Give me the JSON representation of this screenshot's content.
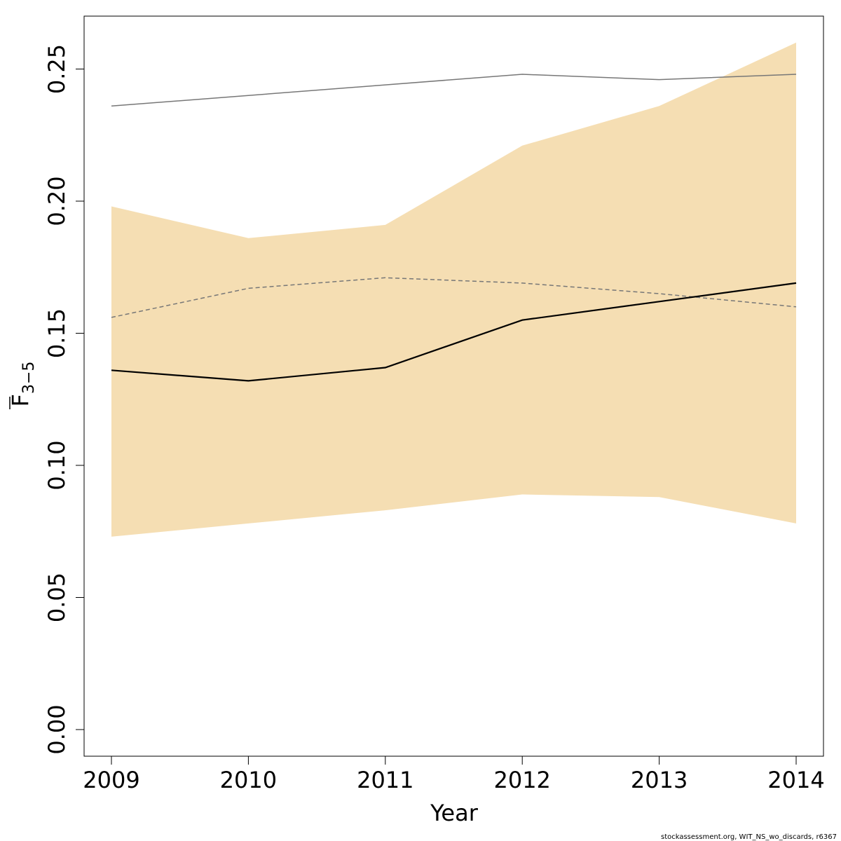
{
  "chart_data": {
    "type": "line",
    "x": [
      2009,
      2010,
      2011,
      2012,
      2013,
      2014
    ],
    "series": [
      {
        "role": "confidence-band-upper",
        "values": [
          0.198,
          0.186,
          0.191,
          0.221,
          0.236,
          0.26
        ]
      },
      {
        "role": "confidence-band-lower",
        "values": [
          0.073,
          0.078,
          0.083,
          0.089,
          0.088,
          0.078
        ]
      },
      {
        "role": "estimate",
        "values": [
          0.136,
          0.132,
          0.137,
          0.155,
          0.162,
          0.169
        ]
      },
      {
        "role": "reference-dashed",
        "values": [
          0.156,
          0.167,
          0.171,
          0.169,
          0.165,
          0.16
        ]
      },
      {
        "role": "reference-solid-grey",
        "values": [
          0.236,
          0.24,
          0.244,
          0.248,
          0.246,
          0.248
        ]
      }
    ],
    "xlabel": "Year",
    "ylabel_main": "F",
    "ylabel_sub": "3−5",
    "ylim": [
      0.0,
      0.26
    ],
    "xlim": [
      2009,
      2014
    ],
    "x_ticks": [
      "2009",
      "2010",
      "2011",
      "2012",
      "2013",
      "2014"
    ],
    "y_ticks": [
      "0.00",
      "0.05",
      "0.10",
      "0.15",
      "0.20",
      "0.25"
    ],
    "y_tick_values": [
      0.0,
      0.05,
      0.1,
      0.15,
      0.2,
      0.25
    ],
    "grid": false,
    "legend": "none",
    "colors": {
      "band": "#f5deb3",
      "estimate": "#000000",
      "reference_dashed": "#777777",
      "reference_solid": "#777777",
      "axis": "#000000"
    }
  },
  "credit": "stockassessment.org, WIT_NS_wo_discards, r6367"
}
